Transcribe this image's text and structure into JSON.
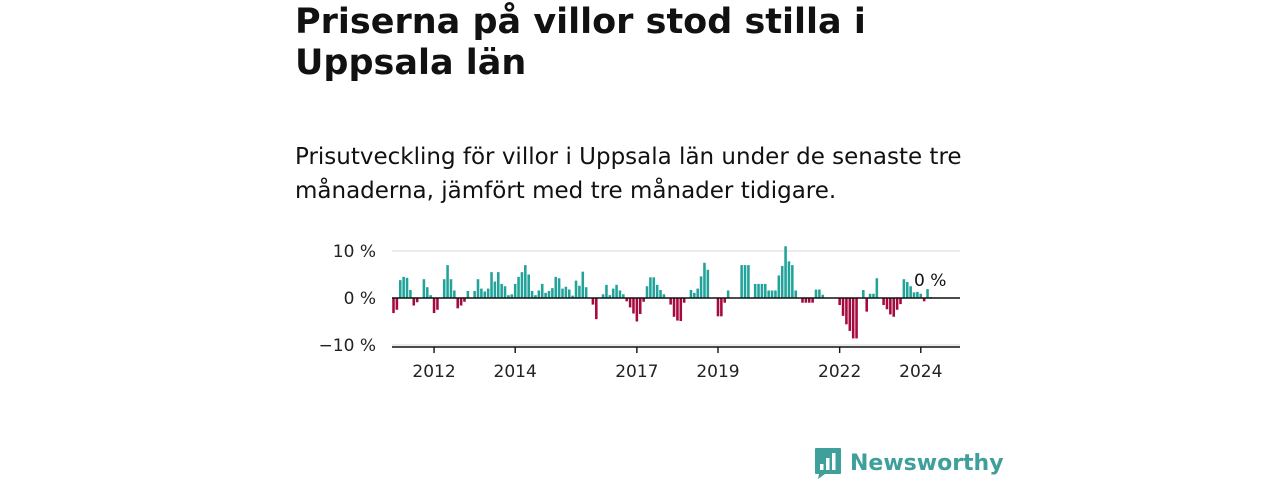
{
  "title": "Priserna på villor stod stilla i Uppsala län",
  "subtitle": "Prisutveckling för villor i Uppsala län under de senaste tre månaderna, jämfört med tre månader tidigare.",
  "brand": {
    "name": "Newsworthy",
    "icon": "bar-chart-logo-icon"
  },
  "colors": {
    "positive": "#22a39a",
    "negative": "#a5093e",
    "axis": "#111111",
    "grid": "#d9d9d9",
    "brand": "#3f9f9a"
  },
  "chart_data": {
    "type": "bar",
    "title": "",
    "xlabel": "",
    "ylabel": "",
    "ylim": [
      -10,
      12
    ],
    "y_ticks": [
      10,
      0,
      -10
    ],
    "y_tick_labels": [
      "10 %",
      "0 %",
      "−10 %"
    ],
    "x_ticks": [
      2012,
      2014,
      2017,
      2019,
      2022,
      2024
    ],
    "x_tick_labels": [
      "2012",
      "2014",
      "2017",
      "2019",
      "2022",
      "2024"
    ],
    "grid": true,
    "end_label": "0 %",
    "x_start": "2011-01",
    "x": [
      "2011-01",
      "2011-02",
      "2011-03",
      "2011-04",
      "2011-05",
      "2011-06",
      "2011-07",
      "2011-08",
      "2011-09",
      "2011-10",
      "2011-11",
      "2011-12",
      "2012-01",
      "2012-02",
      "2012-03",
      "2012-04",
      "2012-05",
      "2012-06",
      "2012-07",
      "2012-08",
      "2012-09",
      "2012-10",
      "2012-11",
      "2012-12",
      "2013-01",
      "2013-02",
      "2013-03",
      "2013-04",
      "2013-05",
      "2013-06",
      "2013-07",
      "2013-08",
      "2013-09",
      "2013-10",
      "2013-11",
      "2013-12",
      "2014-01",
      "2014-02",
      "2014-03",
      "2014-04",
      "2014-05",
      "2014-06",
      "2014-07",
      "2014-08",
      "2014-09",
      "2014-10",
      "2014-11",
      "2014-12",
      "2015-01",
      "2015-02",
      "2015-03",
      "2015-04",
      "2015-05",
      "2015-06",
      "2015-07",
      "2015-08",
      "2015-09",
      "2015-10",
      "2015-11",
      "2015-12",
      "2016-01",
      "2016-02",
      "2016-03",
      "2016-04",
      "2016-05",
      "2016-06",
      "2016-07",
      "2016-08",
      "2016-09",
      "2016-10",
      "2016-11",
      "2016-12",
      "2017-01",
      "2017-02",
      "2017-03",
      "2017-04",
      "2017-05",
      "2017-06",
      "2017-07",
      "2017-08",
      "2017-09",
      "2017-10",
      "2017-11",
      "2017-12",
      "2018-01",
      "2018-02",
      "2018-03",
      "2018-04",
      "2018-05",
      "2018-06",
      "2018-07",
      "2018-08",
      "2018-09",
      "2018-10",
      "2018-11",
      "2018-12",
      "2019-01",
      "2019-02",
      "2019-03",
      "2019-04",
      "2019-05",
      "2019-06",
      "2019-07",
      "2019-08",
      "2019-09",
      "2019-10",
      "2019-11",
      "2019-12",
      "2020-01",
      "2020-02",
      "2020-03",
      "2020-04",
      "2020-05",
      "2020-06",
      "2020-07",
      "2020-08",
      "2020-09",
      "2020-10",
      "2020-11",
      "2020-12",
      "2021-01",
      "2021-02",
      "2021-03",
      "2021-04",
      "2021-05",
      "2021-06",
      "2021-07",
      "2021-08",
      "2021-09",
      "2021-10",
      "2021-11",
      "2021-12",
      "2022-01",
      "2022-02",
      "2022-03",
      "2022-04",
      "2022-05",
      "2022-06",
      "2022-07",
      "2022-08",
      "2022-09",
      "2022-10",
      "2022-11",
      "2022-12",
      "2023-01",
      "2023-02",
      "2023-03",
      "2023-04",
      "2023-05",
      "2023-06",
      "2023-07",
      "2023-08",
      "2023-09",
      "2023-10",
      "2023-11",
      "2023-12",
      "2024-01",
      "2024-02",
      "2024-03",
      "2024-04",
      "2024-05",
      "2024-06",
      "2024-07",
      "2024-08",
      "2024-09",
      "2024-10",
      "2024-11",
      "2024-12"
    ],
    "values": [
      -3.2,
      -2.5,
      3.8,
      4.5,
      4.3,
      1.7,
      -1.6,
      -0.9,
      0,
      4.0,
      2.3,
      0.6,
      -3.2,
      -2.5,
      0,
      4.0,
      7.0,
      4.0,
      1.6,
      -2.2,
      -1.6,
      -0.8,
      1.5,
      0,
      1.5,
      4.0,
      2.0,
      1.4,
      2.0,
      5.5,
      3.5,
      5.5,
      3.0,
      2.5,
      0.6,
      0.8,
      3.0,
      4.5,
      5.5,
      7.0,
      5.0,
      1.5,
      0.6,
      1.6,
      3.0,
      1.1,
      1.5,
      2.1,
      4.5,
      4.2,
      2.0,
      2.4,
      1.8,
      0.5,
      3.7,
      2.6,
      5.6,
      2.3,
      0,
      -1.4,
      -4.5,
      0,
      0.8,
      2.8,
      0.6,
      2.0,
      2.8,
      1.6,
      0.8,
      -0.7,
      -2.0,
      -3.3,
      -5.0,
      -3.4,
      -0.8,
      2.5,
      4.4,
      4.4,
      2.8,
      1.7,
      0.8,
      0,
      -1.4,
      -4.0,
      -4.8,
      -4.9,
      -1.0,
      0,
      1.7,
      1.1,
      2.0,
      4.6,
      7.5,
      6.0,
      0,
      0,
      -3.9,
      -3.9,
      -1.0,
      1.6,
      0,
      0,
      0,
      7.0,
      7.0,
      7.0,
      0,
      3.0,
      3.0,
      3.0,
      3.0,
      1.6,
      1.6,
      1.6,
      4.8,
      6.8,
      11.0,
      7.8,
      7.0,
      1.6,
      0,
      -1.0,
      -1.0,
      -1.0,
      -1.0,
      1.8,
      1.8,
      0.7,
      0,
      0,
      0,
      0,
      -1.5,
      -3.8,
      -5.6,
      -7.0,
      -8.6,
      -8.6,
      0,
      1.7,
      -2.9,
      0.9,
      0.9,
      4.2,
      0,
      -1.5,
      -2.4,
      -3.5,
      -4.0,
      -2.5,
      -1.3,
      4.0,
      3.4,
      2.5,
      1.2,
      1.3,
      0.9,
      -0.7,
      1.9,
      0.2,
      0,
      0,
      0,
      0,
      0,
      0,
      0,
      0
    ]
  }
}
